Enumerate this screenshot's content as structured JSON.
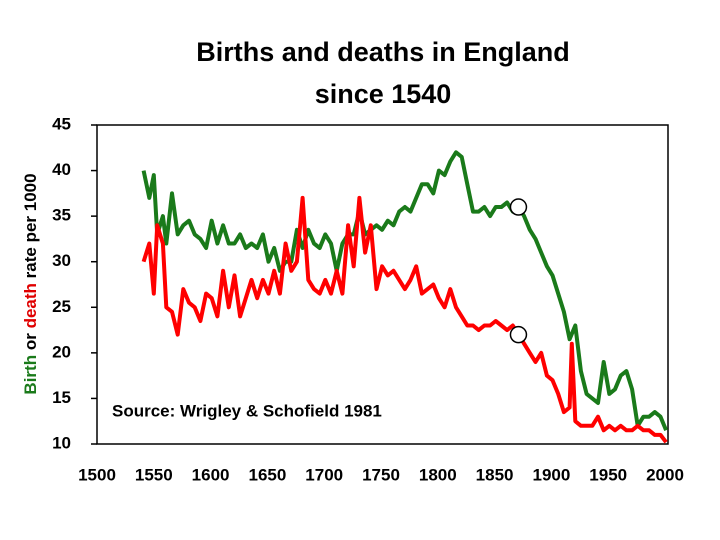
{
  "chart_data": {
    "type": "line",
    "title": [
      "Births and deaths in England",
      "since 1540"
    ],
    "ylabel": [
      {
        "text": "Birth",
        "color": "#1a7a1a"
      },
      {
        "text": "or",
        "color": "#000000"
      },
      {
        "text": "death",
        "color": "#e00000"
      },
      {
        "text": "rate per 1000",
        "color": "#000000"
      }
    ],
    "annotation": "Source: Wrigley & Schofield 1981",
    "xlim": [
      1500,
      2000
    ],
    "xticks": [
      1500,
      1550,
      1600,
      1650,
      1700,
      1750,
      1800,
      1850,
      1900,
      1950,
      2000
    ],
    "ylim": [
      10,
      45
    ],
    "yticks": [
      10,
      15,
      20,
      25,
      30,
      35,
      40,
      45
    ],
    "markers": [
      {
        "x": 1871,
        "y": 36
      },
      {
        "x": 1871,
        "y": 22
      }
    ],
    "series": [
      {
        "name": "Birth",
        "color": "#1a7a1a",
        "x": [
          1541,
          1546,
          1550,
          1553,
          1558,
          1561,
          1566,
          1571,
          1576,
          1581,
          1586,
          1591,
          1596,
          1601,
          1606,
          1611,
          1616,
          1621,
          1626,
          1631,
          1636,
          1641,
          1646,
          1651,
          1656,
          1661,
          1666,
          1671,
          1676,
          1681,
          1686,
          1691,
          1696,
          1701,
          1706,
          1711,
          1716,
          1721,
          1726,
          1731,
          1736,
          1741,
          1746,
          1751,
          1756,
          1761,
          1766,
          1771,
          1776,
          1781,
          1786,
          1791,
          1796,
          1801,
          1806,
          1811,
          1816,
          1821,
          1826,
          1831,
          1836,
          1841,
          1846,
          1851,
          1856,
          1861,
          1866,
          1871,
          1876,
          1881,
          1886,
          1891,
          1896,
          1901,
          1906,
          1911,
          1916,
          1921,
          1926,
          1931,
          1936,
          1941,
          1946,
          1951,
          1956,
          1961,
          1966,
          1971,
          1976,
          1981,
          1986,
          1991,
          1996,
          2001
        ],
        "values": [
          40,
          37,
          39.5,
          33,
          35,
          32,
          37.5,
          33,
          34,
          34.5,
          33,
          32.5,
          31.5,
          34.5,
          32,
          34,
          32,
          32,
          33,
          31.5,
          32,
          31.5,
          33,
          30,
          31.5,
          29,
          30,
          30,
          33.5,
          31.5,
          33.5,
          32,
          31.5,
          33,
          32,
          29,
          32,
          33,
          33,
          35.5,
          33,
          33.5,
          34,
          33.5,
          34.5,
          34,
          35.5,
          36,
          35.5,
          37,
          38.5,
          38.5,
          37.5,
          40,
          39.5,
          41,
          42,
          41.5,
          38.5,
          35.5,
          35.5,
          36,
          35,
          36,
          36,
          36.5,
          35.5,
          36,
          35,
          33.5,
          32.5,
          31,
          29.5,
          28.5,
          26.5,
          24.5,
          21.5,
          23,
          18,
          15.5,
          15,
          14.5,
          19,
          15.5,
          16,
          17.5,
          18,
          16,
          12,
          13,
          13,
          13.5,
          13,
          11.5
        ]
      },
      {
        "name": "death",
        "color": "#ff0000",
        "x": [
          1541,
          1546,
          1550,
          1553,
          1558,
          1561,
          1566,
          1571,
          1576,
          1581,
          1586,
          1591,
          1596,
          1601,
          1606,
          1611,
          1616,
          1621,
          1626,
          1631,
          1636,
          1641,
          1646,
          1651,
          1656,
          1661,
          1666,
          1671,
          1676,
          1681,
          1686,
          1691,
          1696,
          1701,
          1706,
          1711,
          1716,
          1721,
          1726,
          1731,
          1736,
          1741,
          1746,
          1751,
          1756,
          1761,
          1766,
          1771,
          1776,
          1781,
          1786,
          1791,
          1796,
          1801,
          1806,
          1811,
          1816,
          1821,
          1826,
          1831,
          1836,
          1841,
          1846,
          1851,
          1856,
          1861,
          1866,
          1871,
          1876,
          1881,
          1886,
          1891,
          1896,
          1901,
          1906,
          1911,
          1916,
          1918,
          1921,
          1926,
          1931,
          1936,
          1941,
          1946,
          1951,
          1956,
          1961,
          1966,
          1971,
          1976,
          1981,
          1986,
          1991,
          1996,
          2001
        ],
        "values": [
          30,
          32,
          26.5,
          34,
          32,
          25,
          24.5,
          22,
          27,
          25.5,
          25,
          23.5,
          26.5,
          26,
          24,
          29,
          25,
          28.5,
          24,
          26,
          28,
          26,
          28,
          26.5,
          29,
          26.5,
          32,
          29,
          30,
          37,
          28,
          27,
          26.5,
          28,
          26.5,
          29,
          26.5,
          34,
          29.5,
          37,
          31,
          34,
          27,
          29.5,
          28.5,
          29,
          28,
          27,
          28,
          29.5,
          26.5,
          27,
          27.5,
          26,
          25,
          27,
          25,
          24,
          23,
          23,
          22.5,
          23,
          23,
          23.5,
          23,
          22.5,
          23,
          22,
          21,
          20,
          19,
          20,
          17.5,
          17,
          15.5,
          13.5,
          14,
          21,
          12.5,
          12,
          12,
          12,
          13,
          11.5,
          12,
          11.5,
          12,
          11.5,
          11.5,
          12,
          11.5,
          11.5,
          11,
          11,
          10.2
        ]
      }
    ]
  }
}
